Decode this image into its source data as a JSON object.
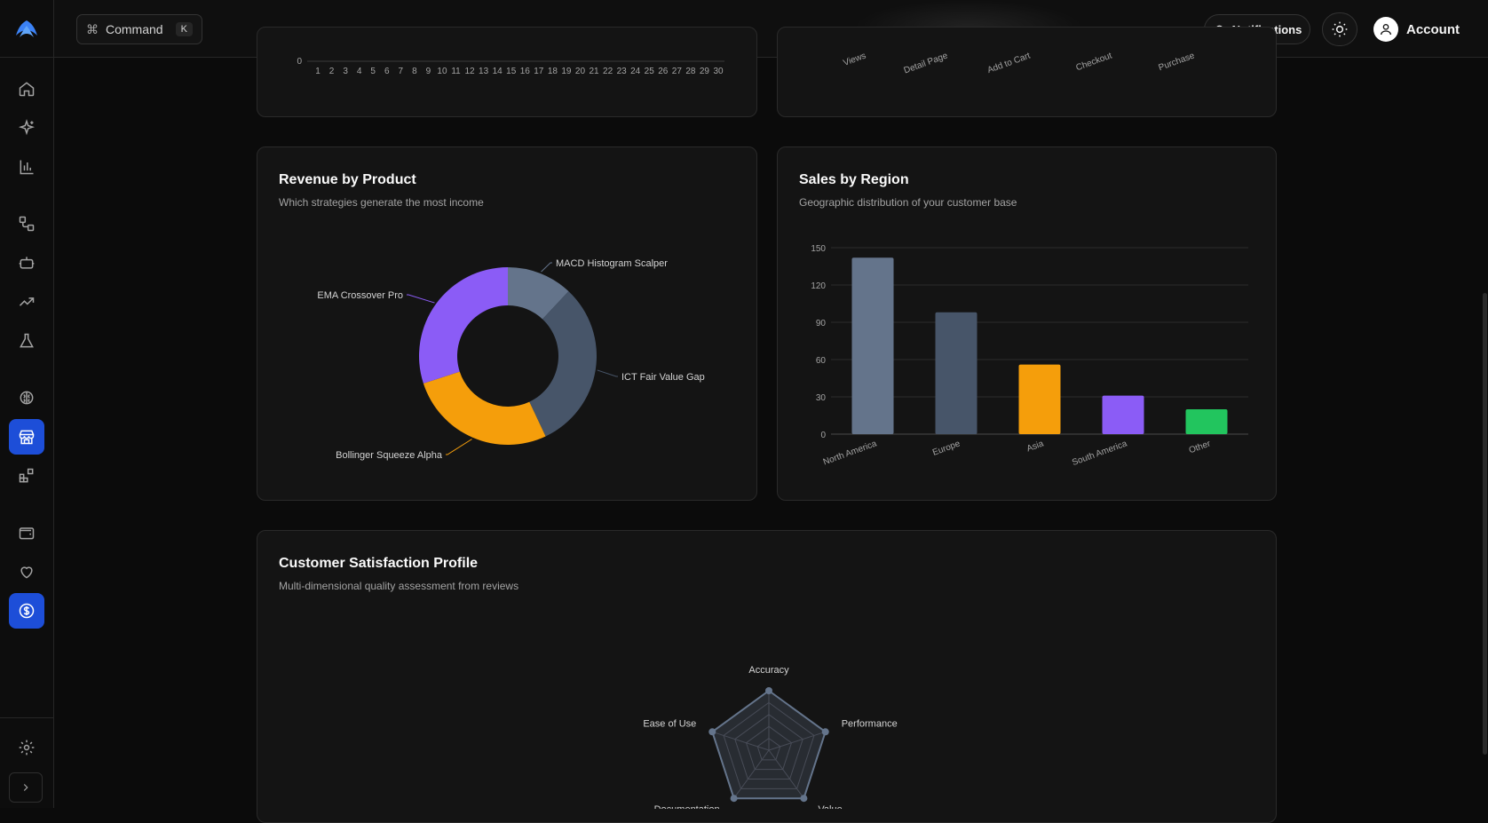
{
  "topbar": {
    "command_label": "Command",
    "command_shortcut": "K",
    "notifications_label": "Notifications",
    "account_label": "Account"
  },
  "sidebar": {
    "items": [
      "home-icon",
      "sparkles-icon",
      "bar-chart-icon",
      "workflow-icon",
      "bot-icon",
      "trending-up-icon",
      "flask-icon",
      "brain-icon",
      "store-icon",
      "blocks-icon",
      "wallet-icon",
      "heart-icon",
      "dollar-circle-icon",
      "settings-icon"
    ],
    "active_items": [
      "store-icon",
      "dollar-circle-icon"
    ]
  },
  "cards": {
    "top_left_partial": {
      "y_tick": "0",
      "x_ticks": [
        "1",
        "2",
        "3",
        "4",
        "5",
        "6",
        "7",
        "8",
        "9",
        "10",
        "11",
        "12",
        "13",
        "14",
        "15",
        "16",
        "17",
        "18",
        "19",
        "20",
        "21",
        "22",
        "23",
        "24",
        "25",
        "26",
        "27",
        "28",
        "29",
        "30"
      ]
    },
    "top_right_partial": {
      "categories": [
        "Views",
        "Detail Page",
        "Add to Cart",
        "Checkout",
        "Purchase"
      ]
    },
    "revenue": {
      "title": "Revenue by Product",
      "subtitle": "Which strategies generate the most income"
    },
    "sales": {
      "title": "Sales by Region",
      "subtitle": "Geographic distribution of your customer base"
    },
    "satisfaction": {
      "title": "Customer Satisfaction Profile",
      "subtitle": "Multi-dimensional quality assessment from reviews"
    }
  },
  "chart_data": [
    {
      "type": "pie",
      "title": "Revenue by Product",
      "donut": true,
      "categories": [
        "MACD Histogram Scalper",
        "ICT Fair Value Gap",
        "Bollinger Squeeze Alpha",
        "EMA Crossover Pro"
      ],
      "values": [
        12,
        31,
        27,
        30
      ],
      "colors": [
        "#64748b",
        "#475569",
        "#f59e0b",
        "#8b5cf6"
      ]
    },
    {
      "type": "bar",
      "title": "Sales by Region",
      "categories": [
        "North America",
        "Europe",
        "Asia",
        "South America",
        "Other"
      ],
      "values": [
        142,
        98,
        56,
        31,
        20
      ],
      "colors": [
        "#64748b",
        "#475569",
        "#f59e0b",
        "#8b5cf6",
        "#22c55e"
      ],
      "ylim": [
        0,
        150
      ],
      "yticks": [
        0,
        30,
        60,
        90,
        120,
        150
      ],
      "grid": true
    },
    {
      "type": "radar",
      "title": "Customer Satisfaction Profile",
      "axes": [
        "Accuracy",
        "Performance",
        "Value",
        "Documentation",
        "Ease of Use"
      ],
      "values": [
        100,
        100,
        100,
        100,
        100
      ],
      "max": 100
    }
  ]
}
